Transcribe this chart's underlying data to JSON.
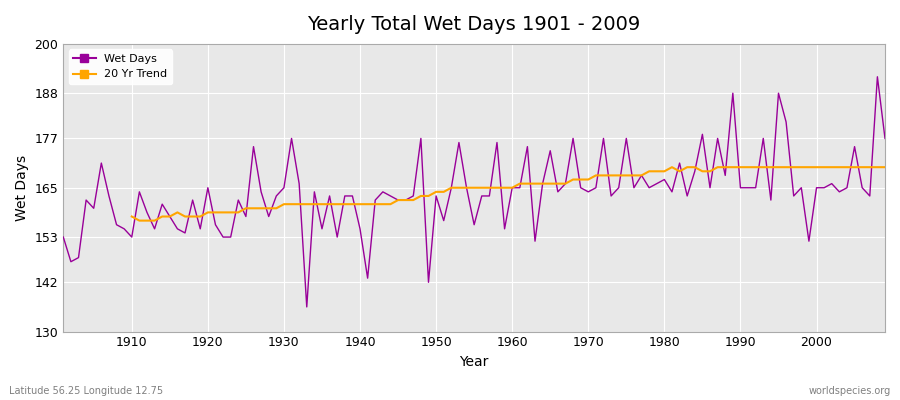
{
  "title": "Yearly Total Wet Days 1901 - 2009",
  "xlabel": "Year",
  "ylabel": "Wet Days",
  "footnote_left": "Latitude 56.25 Longitude 12.75",
  "footnote_right": "worldspecies.org",
  "ylim": [
    130,
    200
  ],
  "yticks": [
    130,
    142,
    153,
    165,
    177,
    188,
    200
  ],
  "bg_color": "#e8e8e8",
  "line_color": "#990099",
  "trend_color": "#ffa500",
  "years": [
    1901,
    1902,
    1903,
    1904,
    1905,
    1906,
    1907,
    1908,
    1909,
    1910,
    1911,
    1912,
    1913,
    1914,
    1915,
    1916,
    1917,
    1918,
    1919,
    1920,
    1921,
    1922,
    1923,
    1924,
    1925,
    1926,
    1927,
    1928,
    1929,
    1930,
    1931,
    1932,
    1933,
    1934,
    1935,
    1936,
    1937,
    1938,
    1939,
    1940,
    1941,
    1942,
    1943,
    1944,
    1945,
    1946,
    1947,
    1948,
    1949,
    1950,
    1951,
    1952,
    1953,
    1954,
    1955,
    1956,
    1957,
    1958,
    1959,
    1960,
    1961,
    1962,
    1963,
    1964,
    1965,
    1966,
    1967,
    1968,
    1969,
    1970,
    1971,
    1972,
    1973,
    1974,
    1975,
    1976,
    1977,
    1978,
    1979,
    1980,
    1981,
    1982,
    1983,
    1984,
    1985,
    1986,
    1987,
    1988,
    1989,
    1990,
    1991,
    1992,
    1993,
    1994,
    1995,
    1996,
    1997,
    1998,
    1999,
    2000,
    2001,
    2002,
    2003,
    2004,
    2005,
    2006,
    2007,
    2008,
    2009
  ],
  "wet_days": [
    153,
    147,
    148,
    162,
    160,
    171,
    163,
    156,
    155,
    153,
    164,
    159,
    155,
    161,
    158,
    155,
    154,
    162,
    155,
    165,
    156,
    153,
    153,
    162,
    158,
    175,
    164,
    158,
    163,
    165,
    177,
    166,
    136,
    164,
    155,
    163,
    153,
    163,
    163,
    155,
    143,
    162,
    164,
    163,
    162,
    162,
    163,
    177,
    142,
    163,
    157,
    165,
    176,
    165,
    156,
    163,
    163,
    176,
    155,
    165,
    165,
    175,
    152,
    166,
    174,
    164,
    166,
    177,
    165,
    164,
    165,
    177,
    163,
    165,
    177,
    165,
    168,
    165,
    166,
    167,
    164,
    171,
    163,
    169,
    178,
    165,
    177,
    168,
    188,
    165,
    165,
    165,
    177,
    162,
    188,
    181,
    163,
    165,
    152,
    165,
    165,
    166,
    164,
    165,
    175,
    165,
    163,
    192,
    177
  ],
  "trend_years": [
    1910,
    1911,
    1912,
    1913,
    1914,
    1915,
    1916,
    1917,
    1918,
    1919,
    1920,
    1921,
    1922,
    1923,
    1924,
    1925,
    1926,
    1927,
    1928,
    1929,
    1930,
    1931,
    1932,
    1933,
    1934,
    1935,
    1936,
    1937,
    1938,
    1939,
    1940,
    1941,
    1942,
    1943,
    1944,
    1945,
    1946,
    1947,
    1948,
    1949,
    1950,
    1951,
    1952,
    1953,
    1954,
    1955,
    1956,
    1957,
    1958,
    1959,
    1960,
    1961,
    1962,
    1963,
    1964,
    1965,
    1966,
    1967,
    1968,
    1969,
    1970,
    1971,
    1972,
    1973,
    1974,
    1975,
    1976,
    1977,
    1978,
    1979,
    1980,
    1981,
    1982,
    1983,
    1984,
    1985,
    1986,
    1987,
    1988,
    1989,
    1990,
    1991,
    1992,
    1993,
    1994,
    1995,
    1996,
    1997,
    1998,
    1999,
    2000,
    2001,
    2002,
    2003,
    2004,
    2005,
    2006,
    2007,
    2008,
    2009
  ],
  "trend_values": [
    158,
    157,
    157,
    157,
    158,
    158,
    159,
    158,
    158,
    158,
    159,
    159,
    159,
    159,
    159,
    160,
    160,
    160,
    160,
    160,
    161,
    161,
    161,
    161,
    161,
    161,
    161,
    161,
    161,
    161,
    161,
    161,
    161,
    161,
    161,
    162,
    162,
    162,
    163,
    163,
    164,
    164,
    165,
    165,
    165,
    165,
    165,
    165,
    165,
    165,
    165,
    166,
    166,
    166,
    166,
    166,
    166,
    166,
    167,
    167,
    167,
    168,
    168,
    168,
    168,
    168,
    168,
    168,
    169,
    169,
    169,
    170,
    169,
    170,
    170,
    169,
    169,
    170,
    170,
    170,
    170,
    170,
    170,
    170,
    170,
    170,
    170,
    170,
    170,
    170,
    170,
    170,
    170,
    170,
    170,
    170,
    170,
    170,
    170,
    170
  ]
}
